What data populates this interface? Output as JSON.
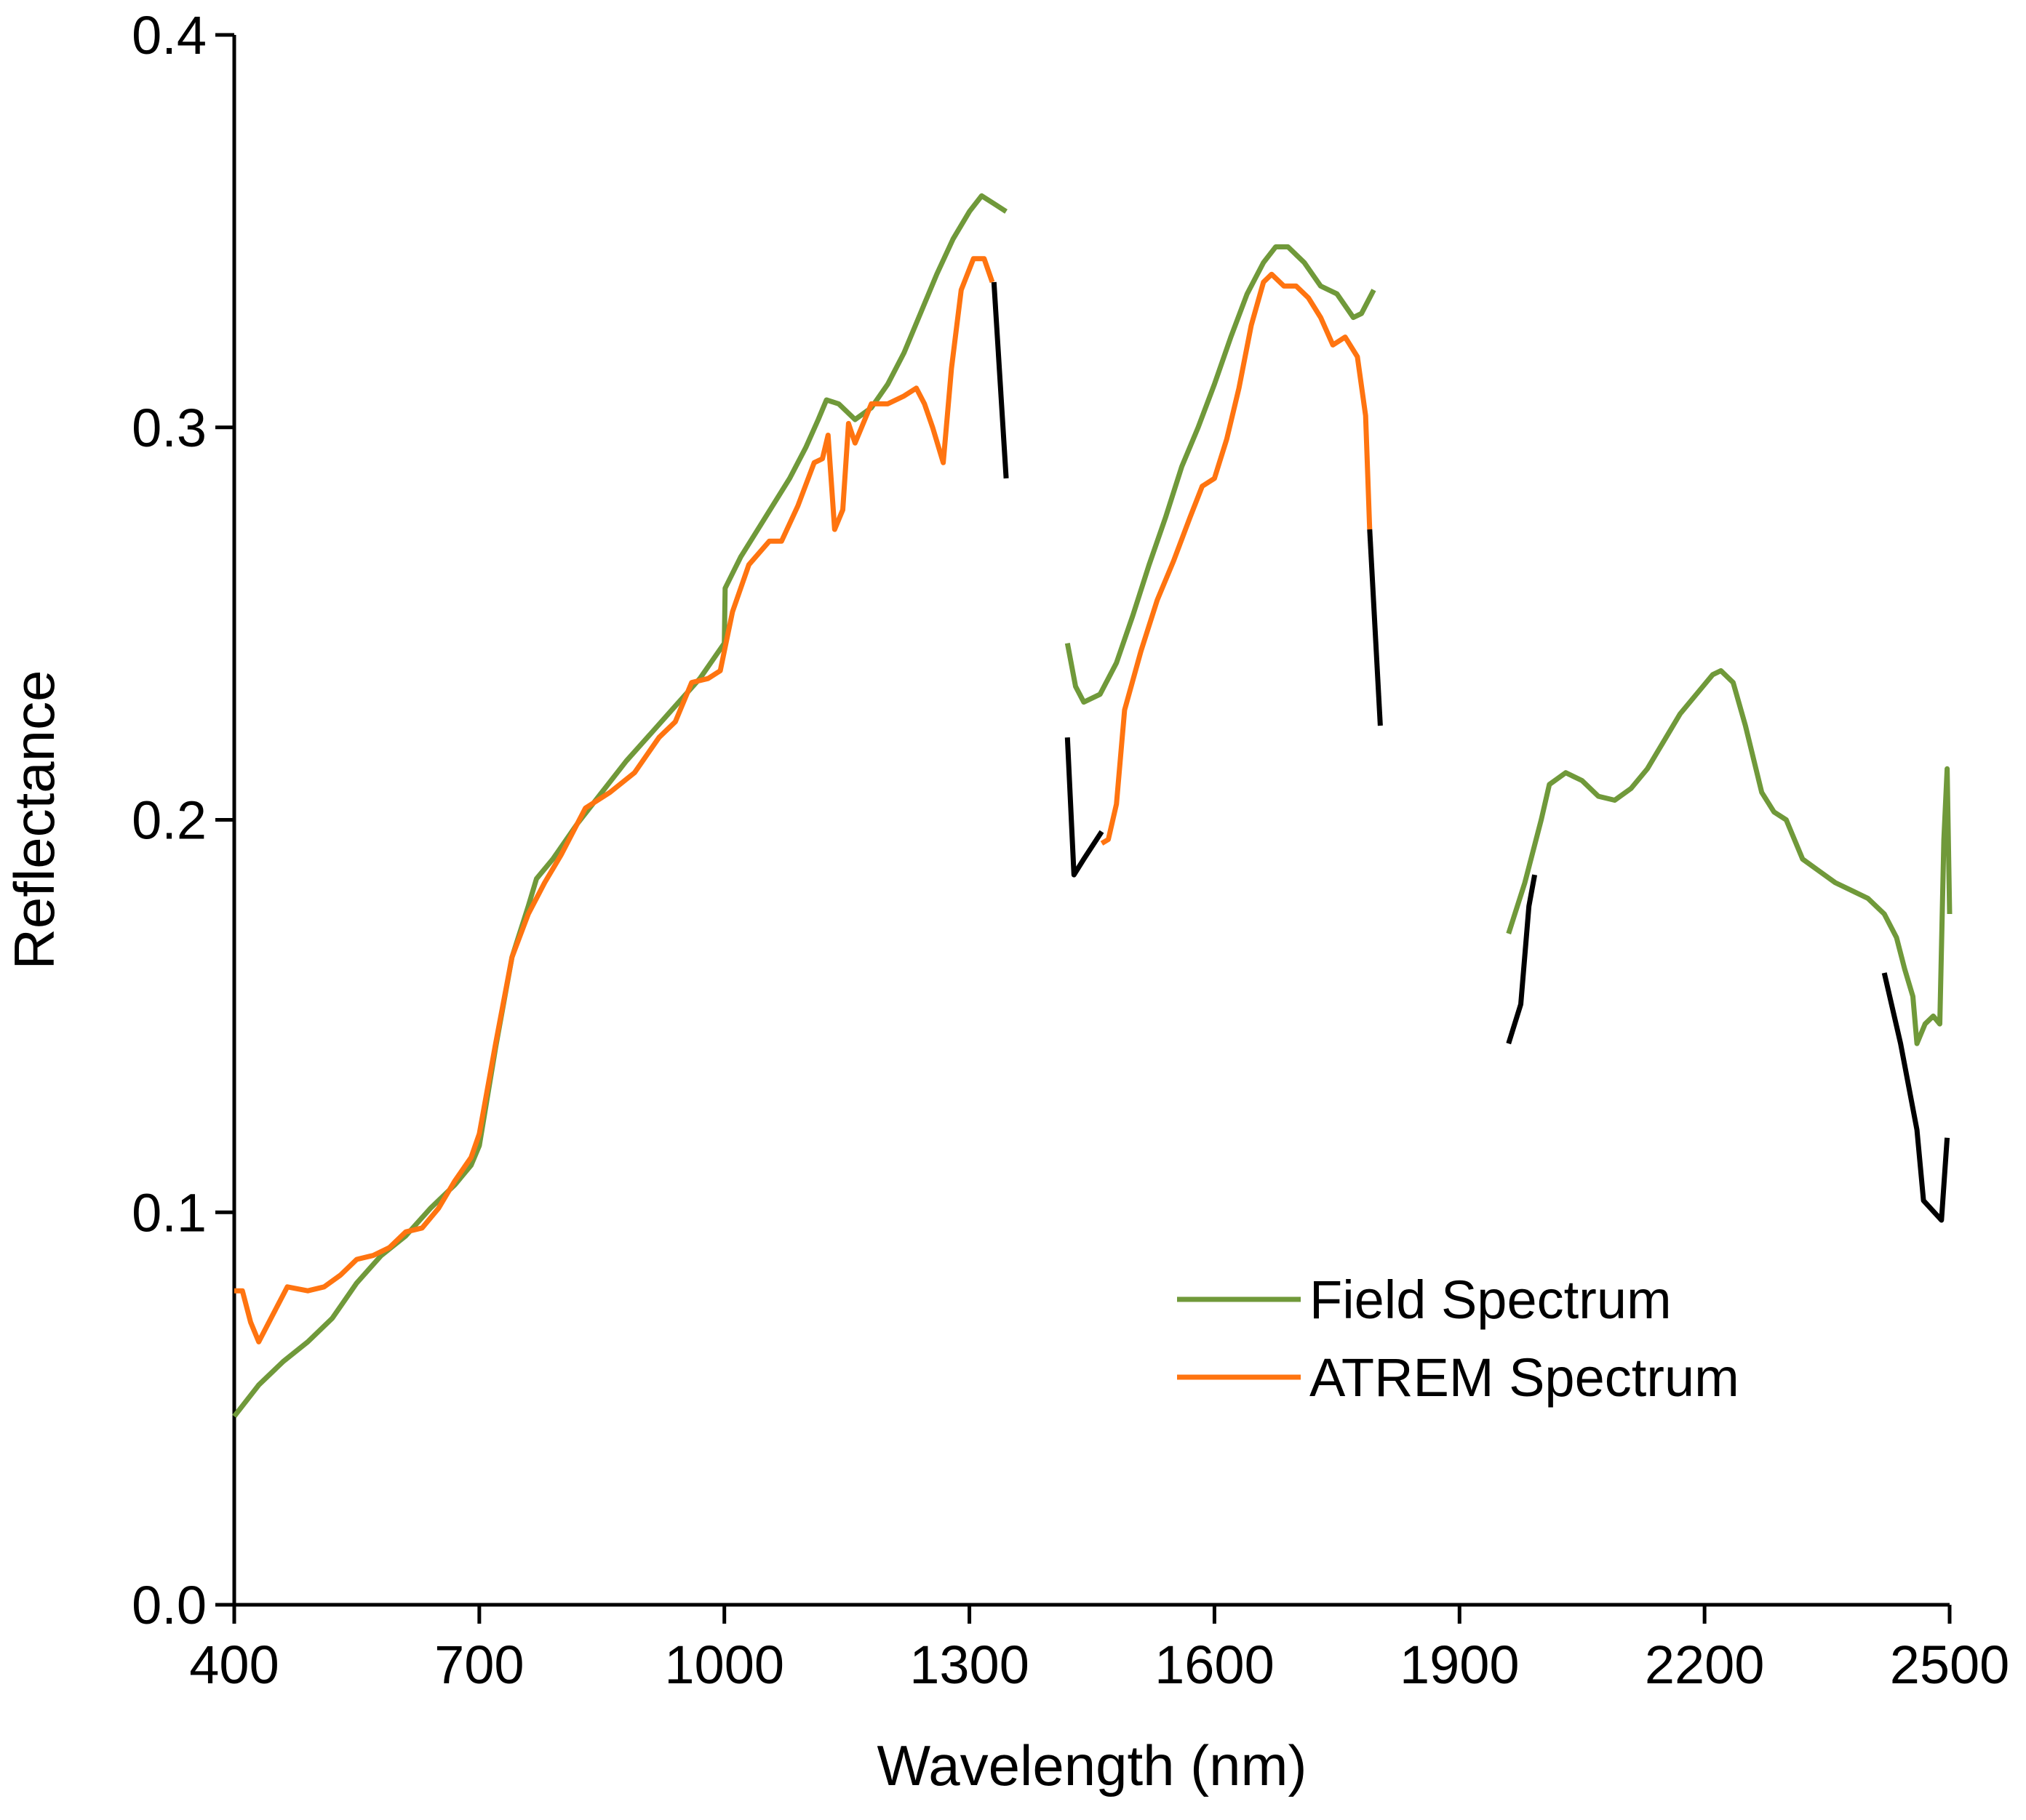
{
  "chart_data": {
    "type": "line",
    "title": "",
    "xlabel": "Wavelength (nm)",
    "ylabel": "Reflectance",
    "xlim": [
      400,
      2500
    ],
    "ylim": [
      0.0,
      0.4
    ],
    "x_ticks": [
      400,
      700,
      1000,
      1300,
      1600,
      1900,
      2200,
      2500
    ],
    "x_tick_labels": [
      "400",
      "700",
      "1000",
      "1300",
      "1600",
      "1900",
      "2200",
      "2500"
    ],
    "y_ticks": [
      0.0,
      0.1,
      0.2,
      0.3,
      0.4
    ],
    "y_tick_labels": [
      "0.0",
      "0.1",
      "0.2",
      "0.3",
      "0.4"
    ],
    "grid": false,
    "legend_position": "bottom-right",
    "colors": {
      "field": "#70993A",
      "atrem": "#FF7410",
      "gap": "#000000",
      "axis": "#000000"
    },
    "series": [
      {
        "name": "Field Spectrum",
        "color": "#70993A",
        "segments": [
          [
            [
              400,
              0.048
            ],
            [
              430,
              0.056
            ],
            [
              460,
              0.062
            ],
            [
              490,
              0.067
            ],
            [
              520,
              0.073
            ],
            [
              550,
              0.082
            ],
            [
              580,
              0.089
            ],
            [
              610,
              0.094
            ],
            [
              640,
              0.101
            ],
            [
              670,
              0.107
            ],
            [
              690,
              0.112
            ],
            [
              700,
              0.117
            ],
            [
              720,
              0.142
            ],
            [
              740,
              0.165
            ],
            [
              760,
              0.178
            ],
            [
              770,
              0.185
            ],
            [
              790,
              0.19
            ],
            [
              820,
              0.199
            ],
            [
              850,
              0.207
            ],
            [
              880,
              0.215
            ],
            [
              910,
              0.222
            ],
            [
              940,
              0.229
            ],
            [
              970,
              0.236
            ],
            [
              990,
              0.242
            ],
            [
              1000,
              0.245
            ],
            [
              1001,
              0.259
            ],
            [
              1020,
              0.267
            ],
            [
              1050,
              0.277
            ],
            [
              1080,
              0.287
            ],
            [
              1100,
              0.295
            ],
            [
              1115,
              0.302
            ],
            [
              1125,
              0.307
            ],
            [
              1140,
              0.306
            ],
            [
              1160,
              0.302
            ],
            [
              1180,
              0.305
            ],
            [
              1200,
              0.311
            ],
            [
              1220,
              0.319
            ],
            [
              1240,
              0.329
            ],
            [
              1260,
              0.339
            ],
            [
              1280,
              0.348
            ],
            [
              1300,
              0.355
            ],
            [
              1315,
              0.359
            ],
            [
              1330,
              0.357
            ],
            [
              1345,
              0.355
            ]
          ],
          [
            [
              1420,
              0.245
            ],
            [
              1430,
              0.234
            ],
            [
              1440,
              0.23
            ],
            [
              1460,
              0.232
            ],
            [
              1480,
              0.24
            ],
            [
              1500,
              0.252
            ],
            [
              1520,
              0.265
            ],
            [
              1540,
              0.277
            ],
            [
              1560,
              0.29
            ],
            [
              1580,
              0.3
            ],
            [
              1600,
              0.311
            ],
            [
              1620,
              0.323
            ],
            [
              1640,
              0.334
            ],
            [
              1660,
              0.342
            ],
            [
              1675,
              0.346
            ],
            [
              1690,
              0.346
            ],
            [
              1710,
              0.342
            ],
            [
              1730,
              0.336
            ],
            [
              1750,
              0.334
            ],
            [
              1770,
              0.328
            ],
            [
              1780,
              0.329
            ],
            [
              1795,
              0.335
            ]
          ],
          [
            [
              1960,
              0.171
            ],
            [
              1980,
              0.184
            ],
            [
              2000,
              0.2
            ],
            [
              2010,
              0.209
            ],
            [
              2030,
              0.212
            ],
            [
              2050,
              0.21
            ],
            [
              2070,
              0.206
            ],
            [
              2090,
              0.205
            ],
            [
              2110,
              0.208
            ],
            [
              2130,
              0.213
            ],
            [
              2150,
              0.22
            ],
            [
              2170,
              0.227
            ],
            [
              2190,
              0.232
            ],
            [
              2210,
              0.237
            ],
            [
              2220,
              0.238
            ],
            [
              2235,
              0.235
            ],
            [
              2250,
              0.224
            ],
            [
              2270,
              0.207
            ],
            [
              2285,
              0.202
            ],
            [
              2300,
              0.2
            ],
            [
              2320,
              0.19
            ],
            [
              2340,
              0.187
            ],
            [
              2360,
              0.184
            ],
            [
              2380,
              0.182
            ],
            [
              2400,
              0.18
            ],
            [
              2420,
              0.176
            ],
            [
              2435,
              0.17
            ],
            [
              2445,
              0.162
            ],
            [
              2455,
              0.155
            ],
            [
              2460,
              0.143
            ],
            [
              2470,
              0.148
            ],
            [
              2480,
              0.15
            ],
            [
              2488,
              0.148
            ],
            [
              2493,
              0.195
            ],
            [
              2497,
              0.213
            ],
            [
              2500,
              0.176
            ]
          ]
        ]
      },
      {
        "name": "ATREM Spectrum",
        "color": "#FF7410",
        "segments": [
          [
            [
              400,
              0.08
            ],
            [
              410,
              0.08
            ],
            [
              420,
              0.072
            ],
            [
              430,
              0.067
            ],
            [
              445,
              0.073
            ],
            [
              465,
              0.081
            ],
            [
              490,
              0.08
            ],
            [
              510,
              0.081
            ],
            [
              530,
              0.084
            ],
            [
              550,
              0.088
            ],
            [
              570,
              0.089
            ],
            [
              590,
              0.091
            ],
            [
              610,
              0.095
            ],
            [
              630,
              0.096
            ],
            [
              650,
              0.101
            ],
            [
              670,
              0.108
            ],
            [
              690,
              0.114
            ],
            [
              700,
              0.12
            ],
            [
              720,
              0.143
            ],
            [
              740,
              0.165
            ],
            [
              760,
              0.176
            ],
            [
              780,
              0.184
            ],
            [
              800,
              0.191
            ],
            [
              830,
              0.203
            ],
            [
              860,
              0.207
            ],
            [
              890,
              0.212
            ],
            [
              920,
              0.221
            ],
            [
              940,
              0.225
            ],
            [
              960,
              0.235
            ],
            [
              980,
              0.236
            ],
            [
              995,
              0.238
            ],
            [
              1010,
              0.253
            ],
            [
              1030,
              0.265
            ],
            [
              1055,
              0.271
            ],
            [
              1070,
              0.271
            ],
            [
              1090,
              0.28
            ],
            [
              1110,
              0.291
            ],
            [
              1120,
              0.292
            ],
            [
              1127,
              0.298
            ],
            [
              1135,
              0.274
            ],
            [
              1145,
              0.279
            ],
            [
              1152,
              0.301
            ],
            [
              1160,
              0.296
            ],
            [
              1180,
              0.306
            ],
            [
              1200,
              0.306
            ],
            [
              1220,
              0.308
            ],
            [
              1235,
              0.31
            ],
            [
              1245,
              0.306
            ],
            [
              1255,
              0.3
            ],
            [
              1268,
              0.291
            ],
            [
              1278,
              0.315
            ],
            [
              1290,
              0.335
            ],
            [
              1305,
              0.343
            ],
            [
              1318,
              0.343
            ],
            [
              1328,
              0.337
            ]
          ],
          [
            [
              1462,
              0.194
            ],
            [
              1470,
              0.195
            ],
            [
              1480,
              0.204
            ],
            [
              1490,
              0.228
            ],
            [
              1510,
              0.243
            ],
            [
              1530,
              0.256
            ],
            [
              1550,
              0.266
            ],
            [
              1570,
              0.277
            ],
            [
              1585,
              0.285
            ],
            [
              1600,
              0.287
            ],
            [
              1615,
              0.297
            ],
            [
              1630,
              0.31
            ],
            [
              1645,
              0.326
            ],
            [
              1660,
              0.337
            ],
            [
              1670,
              0.339
            ],
            [
              1685,
              0.336
            ],
            [
              1700,
              0.336
            ],
            [
              1715,
              0.333
            ],
            [
              1730,
              0.328
            ],
            [
              1745,
              0.321
            ],
            [
              1760,
              0.323
            ],
            [
              1775,
              0.318
            ],
            [
              1785,
              0.303
            ],
            [
              1790,
              0.274
            ]
          ]
        ]
      },
      {
        "name": "",
        "color": "#000000",
        "segments": [
          [
            [
              1330,
              0.337
            ],
            [
              1345,
              0.287
            ]
          ],
          [
            [
              1420,
              0.221
            ],
            [
              1428,
              0.186
            ],
            [
              1440,
              0.19
            ],
            [
              1462,
              0.197
            ]
          ],
          [
            [
              1790,
              0.274
            ],
            [
              1803,
              0.224
            ]
          ],
          [
            [
              1960,
              0.143
            ],
            [
              1975,
              0.153
            ],
            [
              1985,
              0.178
            ],
            [
              1992,
              0.186
            ]
          ],
          [
            [
              2420,
              0.161
            ],
            [
              2440,
              0.143
            ],
            [
              2460,
              0.121
            ],
            [
              2468,
              0.103
            ],
            [
              2490,
              0.098
            ],
            [
              2497,
              0.119
            ]
          ]
        ]
      }
    ],
    "legend": [
      {
        "label": "Field Spectrum",
        "color": "#70993A"
      },
      {
        "label": "ATREM Spectrum",
        "color": "#FF7410"
      }
    ]
  }
}
